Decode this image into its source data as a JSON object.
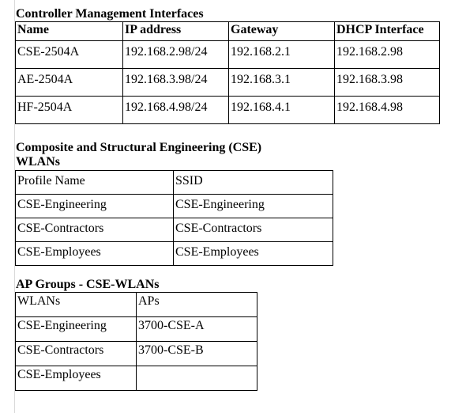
{
  "section1": {
    "heading": "Controller Management Interfaces",
    "columns": [
      "Name",
      "IP address",
      "Gateway",
      "DHCP Interface"
    ],
    "rows": [
      [
        "CSE-2504A",
        "192.168.2.98/24",
        "192.168.2.1",
        "192.168.2.98"
      ],
      [
        "AE-2504A",
        "192.168.3.98/24",
        "192.168.3.1",
        "192.168.3.98"
      ],
      [
        "HF-2504A",
        "192.168.4.98/24",
        "192.168.4.1",
        "192.168.4.98"
      ]
    ]
  },
  "section2": {
    "heading_line1": "Composite and Structural Engineering (CSE)",
    "heading_line2": "WLANs",
    "columns": [
      "Profile Name",
      "SSID"
    ],
    "rows": [
      [
        "CSE-Engineering",
        "CSE-Engineering"
      ],
      [
        "CSE-Contractors",
        "CSE-Contractors"
      ],
      [
        "CSE-Employees",
        "CSE-Employees"
      ]
    ]
  },
  "section3": {
    "heading": "AP Groups - CSE-WLANs",
    "columns": [
      "WLANs",
      "APs"
    ],
    "rows": [
      [
        "CSE-Engineering",
        "3700-CSE-A"
      ],
      [
        "CSE-Contractors",
        "3700-CSE-B"
      ],
      [
        "CSE-Employees",
        ""
      ]
    ]
  }
}
